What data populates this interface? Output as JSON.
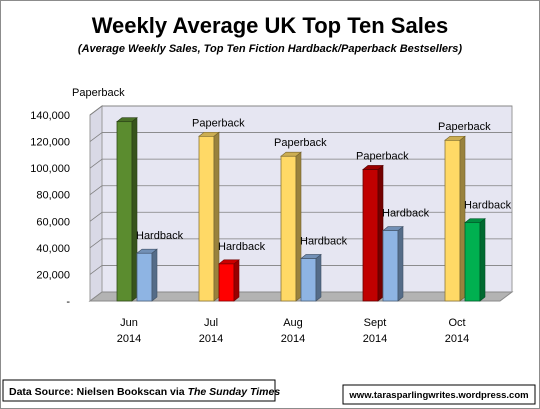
{
  "chart_data": {
    "type": "bar",
    "title": "Weekly Average UK Top Ten Sales",
    "subtitle": "(Average Weekly Sales, Top Ten Fiction Hardback/Paperback Bestsellers)",
    "categories": [
      [
        "Jun",
        "2014"
      ],
      [
        "Jul",
        "2014"
      ],
      [
        "Aug",
        "2014"
      ],
      [
        "Sept",
        "2014"
      ],
      [
        "Oct",
        "2014"
      ]
    ],
    "series": [
      {
        "name": "Paperback",
        "values": [
          135000,
          124000,
          109000,
          99000,
          121000
        ],
        "labels": [
          "Paperback",
          "Paperback",
          "Paperback",
          "Paperback",
          "Paperback"
        ],
        "colors": [
          "#5b8c2f",
          "#ffd966",
          "#ffd966",
          "#c00000",
          "#ffd966"
        ]
      },
      {
        "name": "Hardback",
        "values": [
          36000,
          28000,
          32000,
          53000,
          59000
        ],
        "labels": [
          "Hardback",
          "Hardback",
          "Hardback",
          "Hardback",
          "Hardback"
        ],
        "colors": [
          "#8eb4e3",
          "#ff0000",
          "#8eb4e3",
          "#8eb4e3",
          "#00b050"
        ]
      }
    ],
    "ylim": [
      0,
      140000
    ],
    "yticks": [
      0,
      20000,
      40000,
      60000,
      80000,
      100000,
      120000,
      140000
    ],
    "ytick_labels": [
      "-",
      "20,000",
      "40,000",
      "60,000",
      "80,000",
      "100,000",
      "120,000",
      "140,000"
    ],
    "grid": true,
    "wall_color": "#e6e6f2"
  },
  "footer": {
    "source_prefix": "Data Source: Nielsen Bookscan via ",
    "source_italic": "The Sunday Times",
    "url": "www.tarasparlingwrites.wordpress.com"
  }
}
